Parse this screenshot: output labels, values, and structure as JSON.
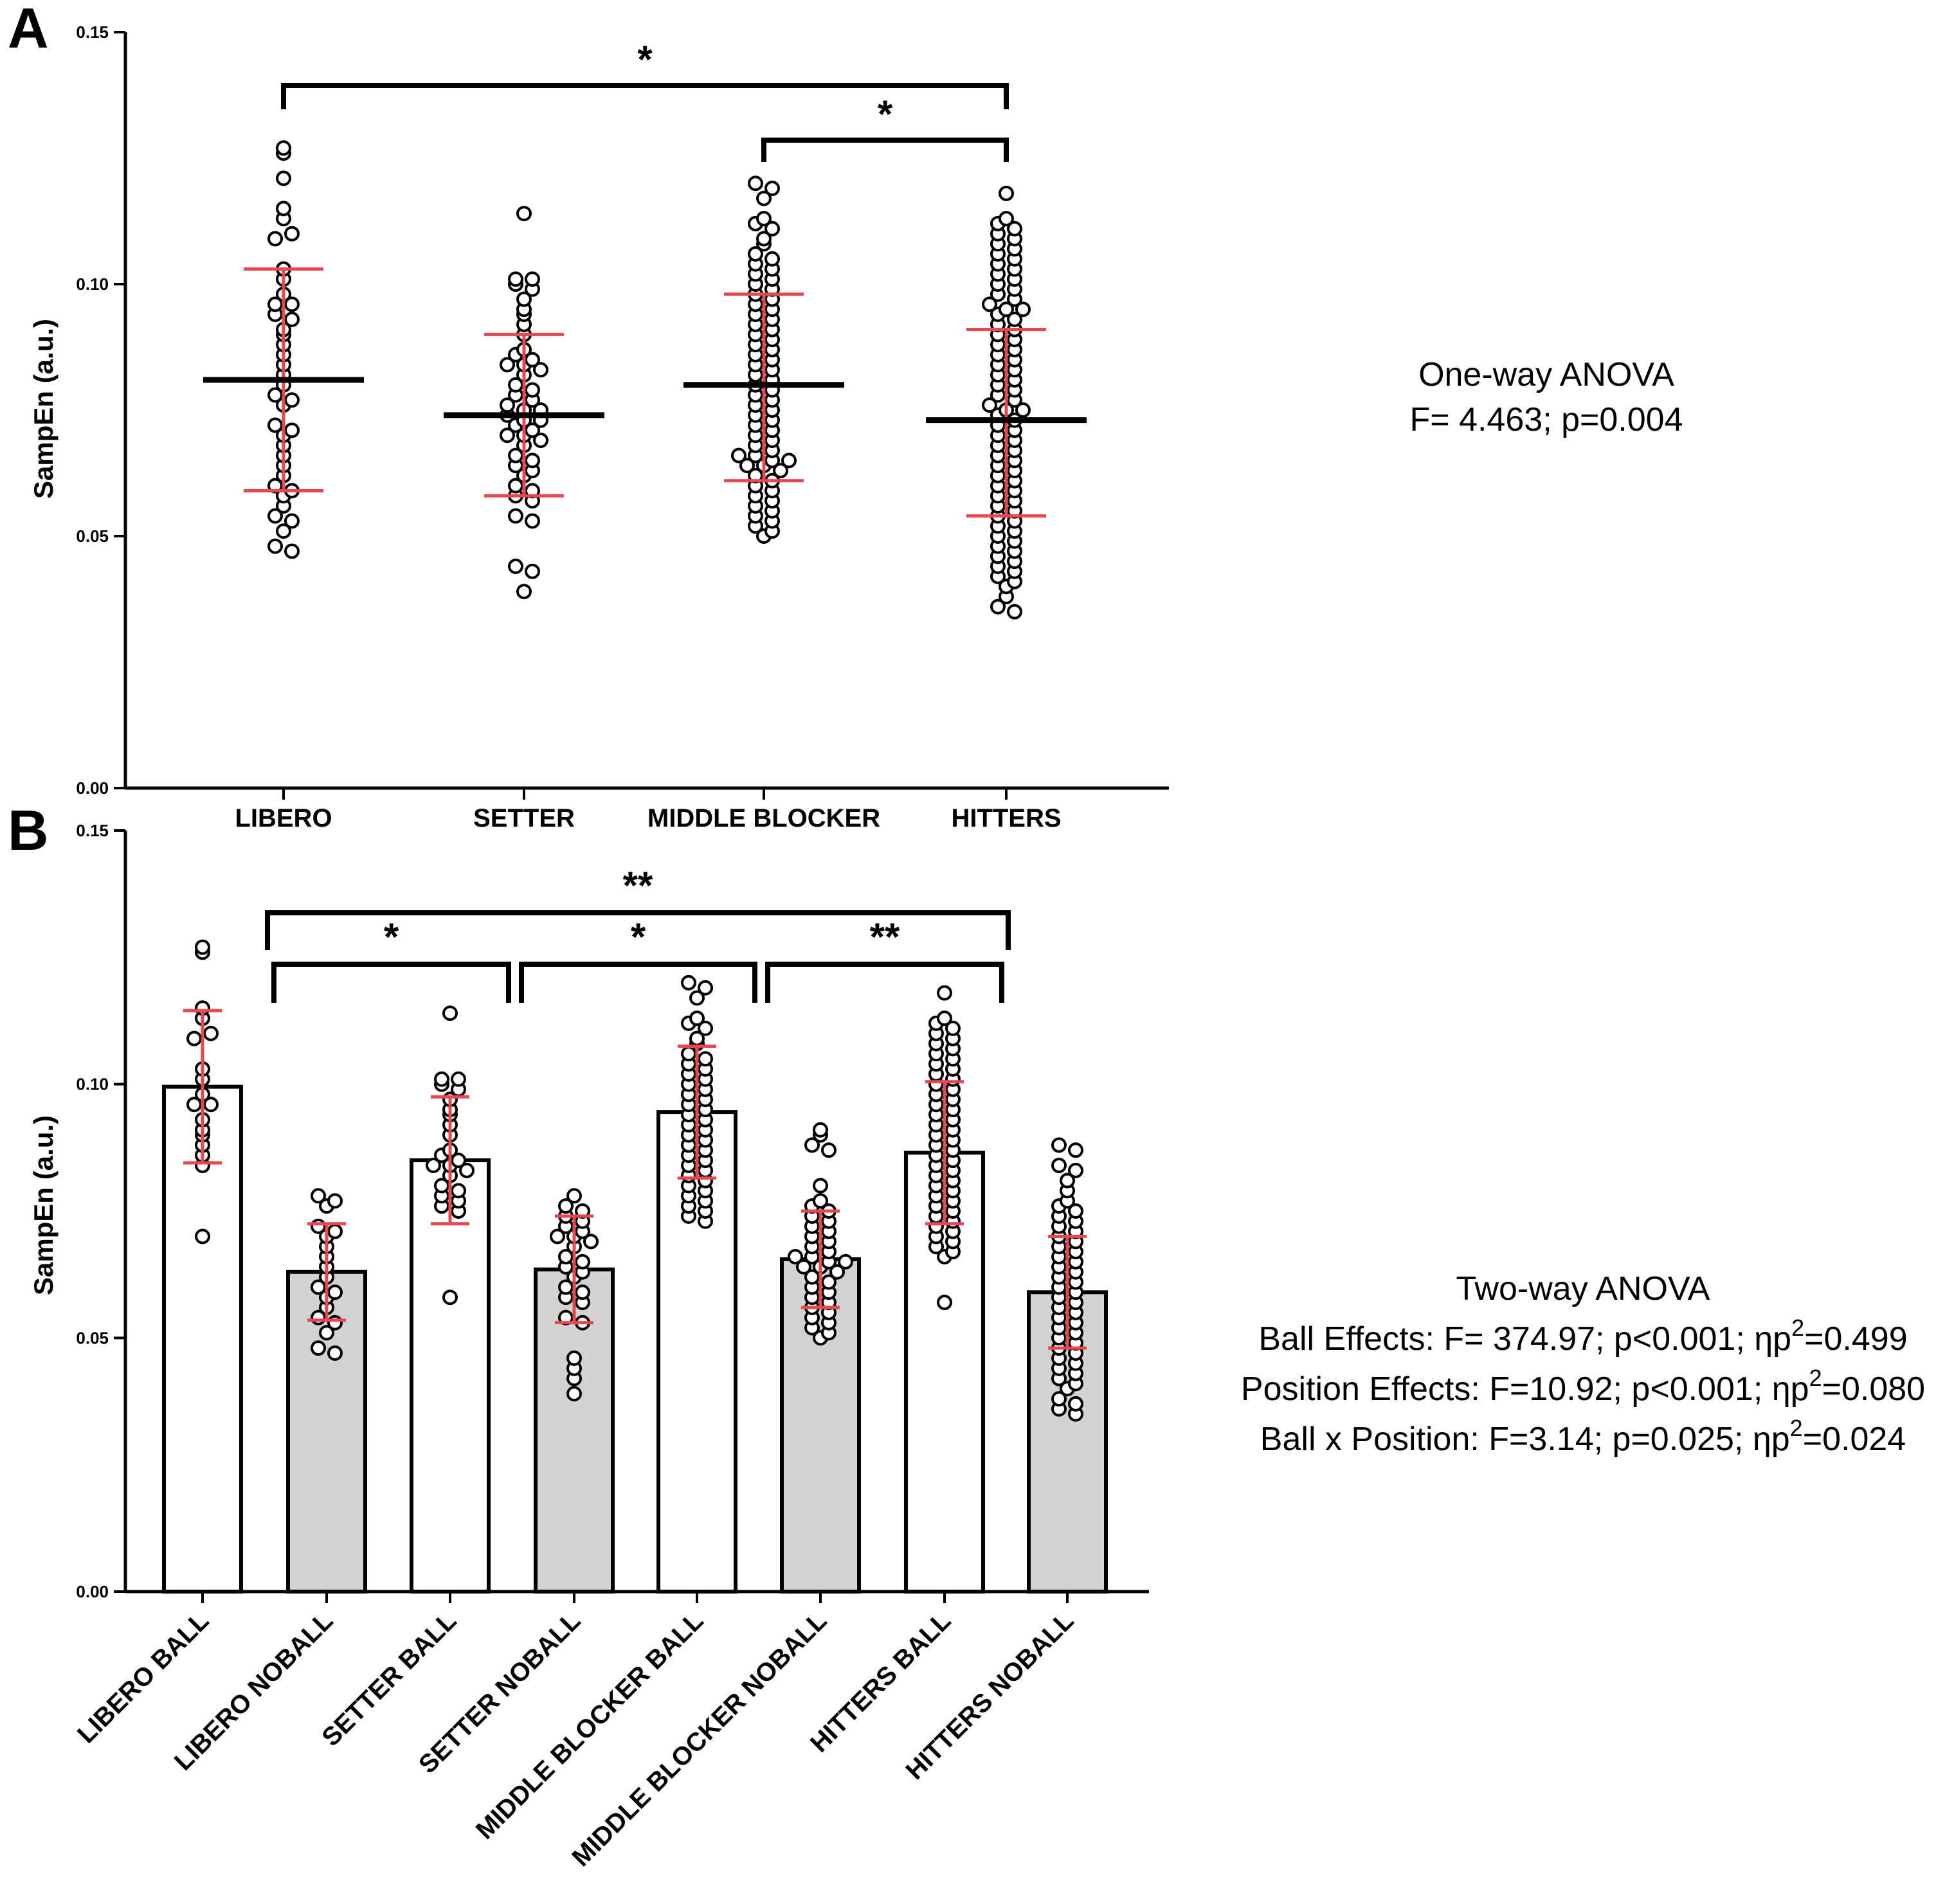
{
  "chart_data": [
    {
      "panel": "A",
      "type": "scatter",
      "ylabel": "SampEn (a.u.)",
      "ylim": [
        0,
        0.15
      ],
      "yticks": [
        "0.00",
        "0.05",
        "0.10",
        "0.15"
      ],
      "categories": [
        "LIBERO",
        "SETTER",
        "MIDDLE BLOCKER",
        "HITTERS"
      ],
      "summary": [
        {
          "category": "LIBERO",
          "mean": 0.081,
          "sd_low": 0.059,
          "sd_high": 0.103
        },
        {
          "category": "SETTER",
          "mean": 0.074,
          "sd_low": 0.058,
          "sd_high": 0.09
        },
        {
          "category": "MIDDLE BLOCKER",
          "mean": 0.08,
          "sd_low": 0.061,
          "sd_high": 0.098
        },
        {
          "category": "HITTERS",
          "mean": 0.073,
          "sd_low": 0.054,
          "sd_high": 0.091
        }
      ],
      "points": {
        "LIBERO": [
          0.127,
          0.126,
          0.121,
          0.115,
          0.113,
          0.109,
          0.11,
          0.103,
          0.101,
          0.098,
          0.096,
          0.096,
          0.094,
          0.093,
          0.091,
          0.09,
          0.088,
          0.086,
          0.084,
          0.082,
          0.08,
          0.078,
          0.077,
          0.076,
          0.072,
          0.071,
          0.07,
          0.068,
          0.066,
          0.064,
          0.062,
          0.06,
          0.059,
          0.058,
          0.056,
          0.054,
          0.053,
          0.051,
          0.048,
          0.047
        ],
        "SETTER": [
          0.114,
          0.101,
          0.101,
          0.1,
          0.099,
          0.097,
          0.095,
          0.094,
          0.092,
          0.09,
          0.087,
          0.086,
          0.085,
          0.084,
          0.084,
          0.083,
          0.082,
          0.08,
          0.079,
          0.078,
          0.077,
          0.076,
          0.075,
          0.075,
          0.074,
          0.073,
          0.073,
          0.072,
          0.071,
          0.07,
          0.07,
          0.069,
          0.068,
          0.066,
          0.065,
          0.064,
          0.063,
          0.062,
          0.06,
          0.059,
          0.058,
          0.057,
          0.054,
          0.053,
          0.044,
          0.043,
          0.039
        ],
        "MIDDLE BLOCKER": [
          0.12,
          0.119,
          0.117,
          0.113,
          0.112,
          0.111,
          0.109,
          0.108,
          0.106,
          0.105,
          0.104,
          0.103,
          0.102,
          0.101,
          0.1,
          0.099,
          0.098,
          0.097,
          0.096,
          0.095,
          0.094,
          0.093,
          0.092,
          0.091,
          0.09,
          0.089,
          0.088,
          0.087,
          0.086,
          0.085,
          0.084,
          0.083,
          0.082,
          0.081,
          0.08,
          0.079,
          0.078,
          0.077,
          0.076,
          0.075,
          0.074,
          0.073,
          0.072,
          0.071,
          0.07,
          0.069,
          0.068,
          0.067,
          0.066,
          0.066,
          0.065,
          0.065,
          0.064,
          0.064,
          0.063,
          0.062,
          0.061,
          0.06,
          0.059,
          0.058,
          0.057,
          0.056,
          0.055,
          0.054,
          0.053,
          0.052,
          0.051,
          0.05
        ],
        "HITTERS": [
          0.118,
          0.113,
          0.112,
          0.111,
          0.11,
          0.109,
          0.108,
          0.107,
          0.106,
          0.105,
          0.104,
          0.103,
          0.102,
          0.101,
          0.1,
          0.099,
          0.098,
          0.097,
          0.096,
          0.095,
          0.095,
          0.094,
          0.093,
          0.092,
          0.091,
          0.09,
          0.089,
          0.088,
          0.087,
          0.086,
          0.085,
          0.084,
          0.083,
          0.082,
          0.081,
          0.08,
          0.079,
          0.078,
          0.077,
          0.076,
          0.075,
          0.075,
          0.074,
          0.073,
          0.072,
          0.071,
          0.07,
          0.069,
          0.068,
          0.067,
          0.066,
          0.065,
          0.064,
          0.063,
          0.062,
          0.061,
          0.06,
          0.059,
          0.058,
          0.057,
          0.056,
          0.055,
          0.054,
          0.053,
          0.052,
          0.051,
          0.05,
          0.049,
          0.048,
          0.047,
          0.046,
          0.045,
          0.044,
          0.043,
          0.042,
          0.041,
          0.04,
          0.038,
          0.036,
          0.035
        ]
      },
      "significance": [
        {
          "from": "LIBERO",
          "to": "HITTERS",
          "label": "*"
        },
        {
          "from": "MIDDLE BLOCKER",
          "to": "HITTERS",
          "label": "*"
        }
      ],
      "stats_text": [
        "One-way ANOVA",
        "F= 4.463; p=0.004"
      ]
    },
    {
      "panel": "B",
      "type": "bar",
      "ylabel": "SampEn (a.u.)",
      "ylim": [
        0,
        0.15
      ],
      "yticks": [
        "0.00",
        "0.05",
        "0.10",
        "0.15"
      ],
      "categories": [
        "LIBERO BALL",
        "LIBERO NOBALL",
        "SETTER BALL",
        "SETTER NOBALL",
        "MIDDLE BLOCKER BALL",
        "MIDDLE BLOCKER NOBALL",
        "HITTERS BALL",
        "HITTERS NOBALL"
      ],
      "values": [
        0.0995,
        0.063,
        0.085,
        0.0635,
        0.0945,
        0.0655,
        0.0865,
        0.059
      ],
      "sd": [
        0.015,
        0.0095,
        0.0125,
        0.0105,
        0.013,
        0.0095,
        0.014,
        0.011
      ],
      "bar_fill": [
        "#ffffff",
        "#d3d3d3",
        "#ffffff",
        "#d3d3d3",
        "#ffffff",
        "#d3d3d3",
        "#ffffff",
        "#d3d3d3"
      ],
      "points": {
        "LIBERO BALL": [
          0.127,
          0.126,
          0.115,
          0.113,
          0.109,
          0.11,
          0.103,
          0.101,
          0.098,
          0.096,
          0.096,
          0.093,
          0.091,
          0.09,
          0.088,
          0.086,
          0.084,
          0.07
        ],
        "LIBERO NOBALL": [
          0.078,
          0.077,
          0.076,
          0.072,
          0.071,
          0.07,
          0.068,
          0.066,
          0.064,
          0.062,
          0.06,
          0.059,
          0.058,
          0.056,
          0.054,
          0.053,
          0.051,
          0.048,
          0.047
        ],
        "SETTER BALL": [
          0.114,
          0.101,
          0.101,
          0.1,
          0.099,
          0.097,
          0.095,
          0.094,
          0.092,
          0.09,
          0.087,
          0.086,
          0.085,
          0.084,
          0.084,
          0.083,
          0.082,
          0.08,
          0.079,
          0.078,
          0.077,
          0.076,
          0.075,
          0.058
        ],
        "SETTER NOBALL": [
          0.078,
          0.076,
          0.075,
          0.074,
          0.073,
          0.072,
          0.071,
          0.07,
          0.07,
          0.069,
          0.068,
          0.066,
          0.065,
          0.064,
          0.063,
          0.062,
          0.06,
          0.059,
          0.058,
          0.057,
          0.054,
          0.053,
          0.046,
          0.044,
          0.042,
          0.039
        ],
        "MIDDLE BLOCKER BALL": [
          0.12,
          0.119,
          0.117,
          0.113,
          0.112,
          0.111,
          0.109,
          0.108,
          0.106,
          0.105,
          0.104,
          0.103,
          0.102,
          0.101,
          0.1,
          0.099,
          0.098,
          0.097,
          0.096,
          0.095,
          0.094,
          0.093,
          0.092,
          0.091,
          0.09,
          0.089,
          0.088,
          0.087,
          0.086,
          0.085,
          0.084,
          0.083,
          0.082,
          0.081,
          0.08,
          0.079,
          0.078,
          0.077,
          0.076,
          0.075,
          0.074,
          0.073
        ],
        "MIDDLE BLOCKER NOBALL": [
          0.091,
          0.09,
          0.088,
          0.087,
          0.08,
          0.077,
          0.076,
          0.075,
          0.074,
          0.073,
          0.072,
          0.071,
          0.07,
          0.069,
          0.068,
          0.067,
          0.066,
          0.066,
          0.065,
          0.065,
          0.064,
          0.064,
          0.063,
          0.062,
          0.061,
          0.06,
          0.059,
          0.058,
          0.057,
          0.056,
          0.055,
          0.054,
          0.053,
          0.052,
          0.051,
          0.05
        ],
        "HITTERS BALL": [
          0.118,
          0.113,
          0.112,
          0.111,
          0.11,
          0.109,
          0.108,
          0.107,
          0.106,
          0.105,
          0.104,
          0.103,
          0.102,
          0.101,
          0.1,
          0.099,
          0.098,
          0.097,
          0.096,
          0.095,
          0.094,
          0.093,
          0.092,
          0.091,
          0.09,
          0.089,
          0.088,
          0.087,
          0.086,
          0.085,
          0.084,
          0.083,
          0.082,
          0.081,
          0.08,
          0.079,
          0.078,
          0.077,
          0.076,
          0.075,
          0.074,
          0.073,
          0.072,
          0.071,
          0.07,
          0.069,
          0.068,
          0.067,
          0.066,
          0.057
        ],
        "HITTERS NOBALL": [
          0.088,
          0.087,
          0.084,
          0.083,
          0.081,
          0.079,
          0.077,
          0.076,
          0.075,
          0.074,
          0.073,
          0.072,
          0.071,
          0.07,
          0.069,
          0.068,
          0.067,
          0.066,
          0.065,
          0.064,
          0.063,
          0.062,
          0.061,
          0.06,
          0.059,
          0.058,
          0.057,
          0.056,
          0.055,
          0.054,
          0.053,
          0.052,
          0.051,
          0.05,
          0.049,
          0.048,
          0.047,
          0.046,
          0.045,
          0.044,
          0.043,
          0.042,
          0.041,
          0.04,
          0.038,
          0.037,
          0.036,
          0.035
        ]
      },
      "significance": [
        {
          "from": "LIBERO NOBALL",
          "to": "SETTER NOBALL",
          "label": "*"
        },
        {
          "from": "SETTER NOBALL",
          "to": "MIDDLE BLOCKER NOBALL",
          "label": "*"
        },
        {
          "from": "MIDDLE BLOCKER NOBALL",
          "to": "HITTERS NOBALL",
          "label": "**"
        },
        {
          "from": "LIBERO NOBALL",
          "to": "HITTERS NOBALL",
          "label": "**"
        }
      ],
      "stats_text": {
        "title": "Two-way ANOVA",
        "lines": [
          {
            "pre": "Ball Effects: F= 374.97; p<0.001; ηp",
            "sup": "2",
            "post": "=0.499"
          },
          {
            "pre": "Position Effects: F=10.92; p<0.001; ηp",
            "sup": "2",
            "post": "=0.080"
          },
          {
            "pre": "Ball x Position: F=3.14; p=0.025; ηp",
            "sup": "2",
            "post": "=0.024"
          }
        ]
      }
    }
  ],
  "labels": {
    "panel_a": "A",
    "panel_b": "B"
  },
  "colors": {
    "error_bar": "#e8474f",
    "axis": "#000000",
    "nobal_fill": "#d3d3d3"
  }
}
